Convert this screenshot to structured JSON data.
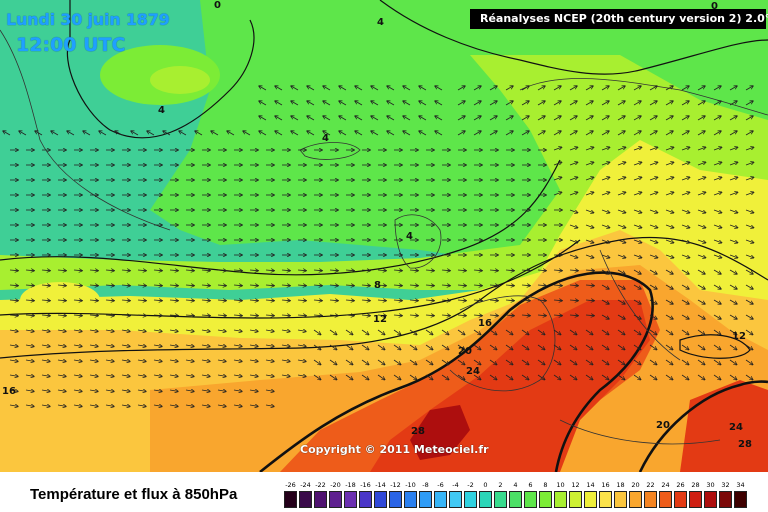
{
  "header": {
    "date": "Lundi 30 juin 1879",
    "time": "12:00 UTC",
    "source": "Réanalyses NCEP (20th century version 2) 2.0°"
  },
  "copyright": "Copyright © 2011 Meteociel.fr",
  "footer": {
    "title": "Température et flux à 850hPa"
  },
  "legend": {
    "ticks": [
      "-26",
      "-24",
      "-22",
      "-20",
      "-18",
      "-16",
      "-14",
      "-12",
      "-10",
      "-8",
      "-6",
      "-4",
      "-2",
      "0",
      "2",
      "4",
      "6",
      "8",
      "10",
      "12",
      "14",
      "16",
      "18",
      "20",
      "22",
      "24",
      "26",
      "28",
      "30",
      "32",
      "34"
    ],
    "colors": [
      "#24001a",
      "#3a0a4a",
      "#4f1270",
      "#5f2090",
      "#6b2fb0",
      "#4a36c8",
      "#3048d8",
      "#2a64e6",
      "#2b80f0",
      "#2f9cf6",
      "#37b6f8",
      "#41c9f4",
      "#2fd2e0",
      "#2bd6b8",
      "#38dc8e",
      "#4cdf66",
      "#5ee64a",
      "#7cec36",
      "#a8ef30",
      "#cdf032",
      "#f0f03a",
      "#fbe24a",
      "#fbc63e",
      "#f9a62e",
      "#f48422",
      "#ee5c1a",
      "#e33a14",
      "#cf1f12",
      "#ad0e0e",
      "#7c0808",
      "#3e0000"
    ]
  },
  "contour_labels": [
    {
      "text": "0",
      "name": "isotherm-label-0-top"
    },
    {
      "text": "0",
      "name": "isotherm-label-0-topright"
    },
    {
      "text": "4",
      "name": "isotherm-label-4-top"
    },
    {
      "text": "4",
      "name": "isotherm-label-4-west"
    },
    {
      "text": "4",
      "name": "isotherm-label-4-iceland"
    },
    {
      "text": "4",
      "name": "isotherm-label-4-britain"
    },
    {
      "text": "8",
      "name": "isotherm-label-8"
    },
    {
      "text": "12",
      "name": "isotherm-label-12-west"
    },
    {
      "text": "12",
      "name": "isotherm-label-12-east"
    },
    {
      "text": "16",
      "name": "isotherm-label-16-france"
    },
    {
      "text": "16",
      "name": "isotherm-label-16-west"
    },
    {
      "text": "20",
      "name": "isotherm-label-20-iberia"
    },
    {
      "text": "20",
      "name": "isotherm-label-20-med"
    },
    {
      "text": "24",
      "name": "isotherm-label-24-iberia"
    },
    {
      "text": "24",
      "name": "isotherm-label-24-east"
    },
    {
      "text": "28",
      "name": "isotherm-label-28-africa"
    },
    {
      "text": "28",
      "name": "isotherm-label-28-east"
    }
  ]
}
